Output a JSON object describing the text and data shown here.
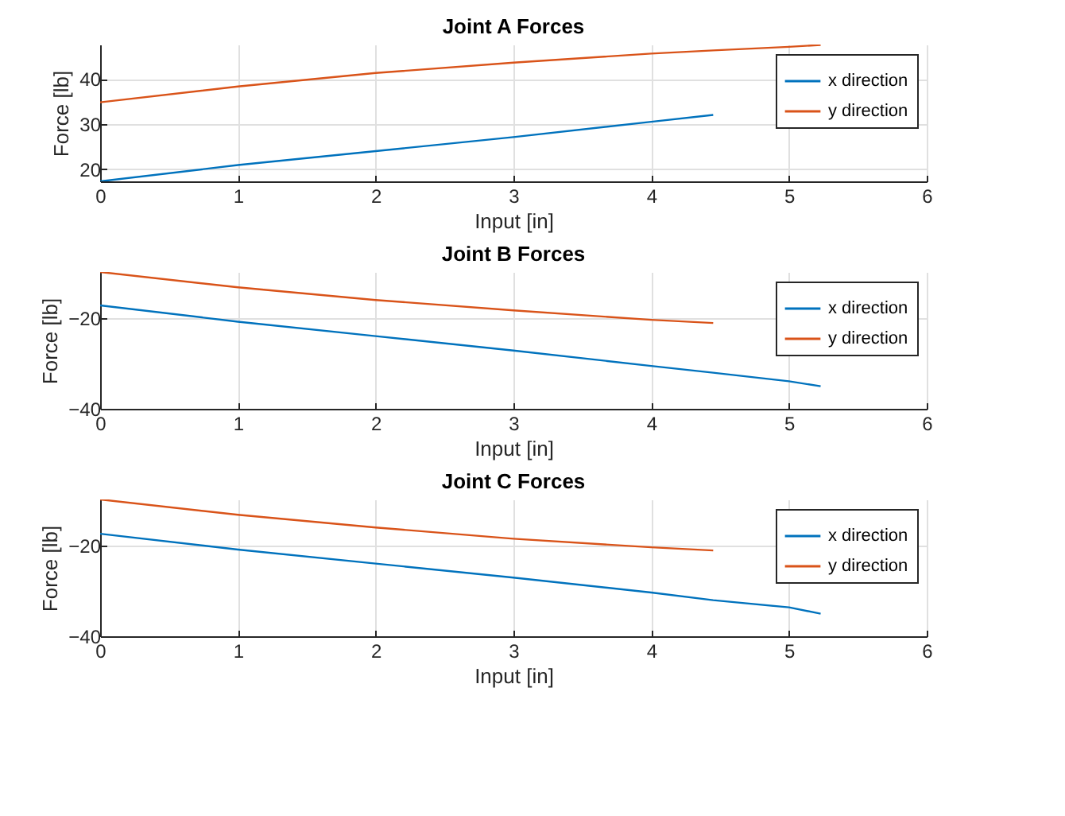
{
  "chart_data": [
    {
      "type": "line",
      "title": "Joint A Forces",
      "xlabel": "Input [in]",
      "ylabel": "Force [lb]",
      "x": [
        0,
        1,
        2,
        3,
        4,
        4.45,
        5,
        5.23
      ],
      "xlim": [
        0,
        6
      ],
      "xticks": [
        0,
        1,
        2,
        3,
        4,
        5,
        6
      ],
      "ylim": [
        17.3,
        47.6
      ],
      "yticks": [
        20,
        30,
        40
      ],
      "grid": true,
      "legend": "top right",
      "series": [
        {
          "name": "x direction",
          "color": "#0072bd",
          "values": [
            17.3,
            20.9,
            24.0,
            27.1,
            30.5,
            32.0,
            null,
            null
          ]
        },
        {
          "name": "y direction",
          "color": "#d95319",
          "values": [
            34.8,
            38.3,
            41.3,
            43.6,
            45.6,
            46.3,
            47.1,
            47.5
          ]
        }
      ]
    },
    {
      "type": "line",
      "title": "Joint B Forces",
      "xlabel": "Input [in]",
      "ylabel": "Force [lb]",
      "x": [
        0,
        1,
        2,
        3,
        4,
        4.45,
        5,
        5.23
      ],
      "xlim": [
        0,
        6
      ],
      "xticks": [
        0,
        1,
        2,
        3,
        4,
        5,
        6
      ],
      "ylim": [
        -40,
        -9.7
      ],
      "yticks": [
        -40,
        -20
      ],
      "grid": true,
      "legend": "top right",
      "series": [
        {
          "name": "x direction",
          "color": "#0072bd",
          "values": [
            -17.1,
            -20.7,
            -23.9,
            -27.1,
            -30.5,
            -32.0,
            -33.9,
            -35.0
          ]
        },
        {
          "name": "y direction",
          "color": "#d95319",
          "values": [
            -9.7,
            -13.1,
            -15.9,
            -18.2,
            -20.3,
            -21.0,
            null,
            null
          ]
        }
      ]
    },
    {
      "type": "line",
      "title": "Joint C Forces",
      "xlabel": "Input [in]",
      "ylabel": "Force [lb]",
      "x": [
        0,
        1,
        2,
        3,
        4,
        4.45,
        5,
        5.23
      ],
      "xlim": [
        0,
        6
      ],
      "xticks": [
        0,
        1,
        2,
        3,
        4,
        5,
        6
      ],
      "ylim": [
        -40,
        -9.7
      ],
      "yticks": [
        -40,
        -20
      ],
      "grid": true,
      "legend": "top right",
      "series": [
        {
          "name": "x direction",
          "color": "#0072bd",
          "values": [
            -17.3,
            -20.8,
            -23.9,
            -27.0,
            -30.3,
            -32.0,
            -33.6,
            -35.0
          ]
        },
        {
          "name": "y direction",
          "color": "#d95319",
          "values": [
            -9.7,
            -13.1,
            -15.9,
            -18.4,
            -20.3,
            -21.0,
            null,
            null
          ]
        }
      ]
    }
  ]
}
